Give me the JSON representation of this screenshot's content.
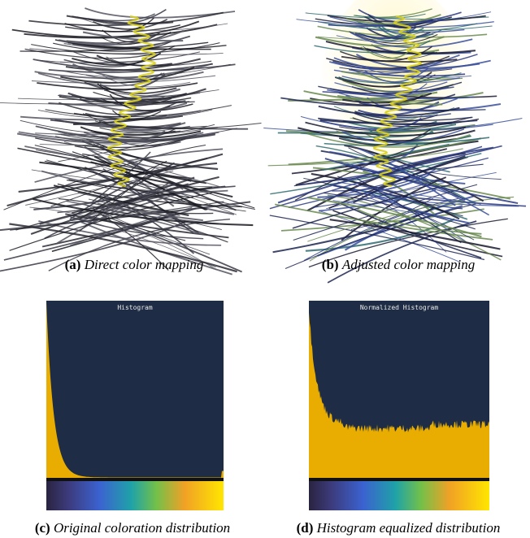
{
  "panels": [
    {
      "label": "(a)",
      "caption": "Direct color mapping"
    },
    {
      "label": "(b)",
      "caption": "Adjusted color mapping"
    },
    {
      "label": "(c)",
      "caption": "Original coloration distribution",
      "title": "Histogram"
    },
    {
      "label": "(d)",
      "caption": "Histogram equalized distribution",
      "title": "Normalized Histogram"
    }
  ]
}
